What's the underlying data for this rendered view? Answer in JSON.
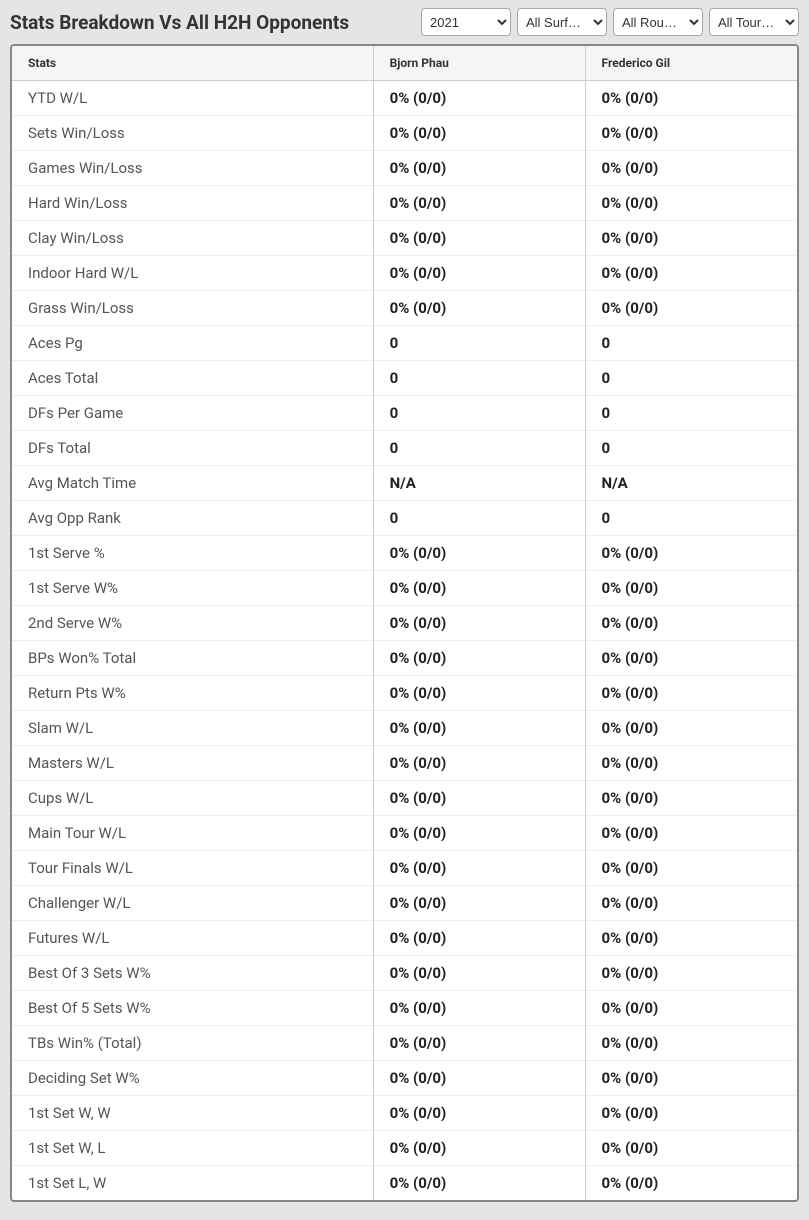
{
  "header": {
    "title": "Stats Breakdown Vs All H2H Opponents",
    "filters": {
      "year": "2021",
      "surface": "All Surf…",
      "round": "All Rou…",
      "tour": "All Tour…"
    }
  },
  "table": {
    "columns": [
      "Stats",
      "Bjorn Phau",
      "Frederico Gil"
    ],
    "header_bg": "#f5f5f5",
    "border_color": "#cccccc",
    "row_border": "#eeeeee",
    "rows": [
      {
        "stat": "YTD W/L",
        "p1": "0% (0/0)",
        "p2": "0% (0/0)"
      },
      {
        "stat": "Sets Win/Loss",
        "p1": "0% (0/0)",
        "p2": "0% (0/0)"
      },
      {
        "stat": "Games Win/Loss",
        "p1": "0% (0/0)",
        "p2": "0% (0/0)"
      },
      {
        "stat": "Hard Win/Loss",
        "p1": "0% (0/0)",
        "p2": "0% (0/0)"
      },
      {
        "stat": "Clay Win/Loss",
        "p1": "0% (0/0)",
        "p2": "0% (0/0)"
      },
      {
        "stat": "Indoor Hard W/L",
        "p1": "0% (0/0)",
        "p2": "0% (0/0)"
      },
      {
        "stat": "Grass Win/Loss",
        "p1": "0% (0/0)",
        "p2": "0% (0/0)"
      },
      {
        "stat": "Aces Pg",
        "p1": "0",
        "p2": "0"
      },
      {
        "stat": "Aces Total",
        "p1": "0",
        "p2": "0"
      },
      {
        "stat": "DFs Per Game",
        "p1": "0",
        "p2": "0"
      },
      {
        "stat": "DFs Total",
        "p1": "0",
        "p2": "0"
      },
      {
        "stat": "Avg Match Time",
        "p1": "N/A",
        "p2": "N/A"
      },
      {
        "stat": "Avg Opp Rank",
        "p1": "0",
        "p2": "0"
      },
      {
        "stat": "1st Serve %",
        "p1": "0% (0/0)",
        "p2": "0% (0/0)"
      },
      {
        "stat": "1st Serve W%",
        "p1": "0% (0/0)",
        "p2": "0% (0/0)"
      },
      {
        "stat": "2nd Serve W%",
        "p1": "0% (0/0)",
        "p2": "0% (0/0)"
      },
      {
        "stat": "BPs Won% Total",
        "p1": "0% (0/0)",
        "p2": "0% (0/0)"
      },
      {
        "stat": "Return Pts W%",
        "p1": "0% (0/0)",
        "p2": "0% (0/0)"
      },
      {
        "stat": "Slam W/L",
        "p1": "0% (0/0)",
        "p2": "0% (0/0)"
      },
      {
        "stat": "Masters W/L",
        "p1": "0% (0/0)",
        "p2": "0% (0/0)"
      },
      {
        "stat": "Cups W/L",
        "p1": "0% (0/0)",
        "p2": "0% (0/0)"
      },
      {
        "stat": "Main Tour W/L",
        "p1": "0% (0/0)",
        "p2": "0% (0/0)"
      },
      {
        "stat": "Tour Finals W/L",
        "p1": "0% (0/0)",
        "p2": "0% (0/0)"
      },
      {
        "stat": "Challenger W/L",
        "p1": "0% (0/0)",
        "p2": "0% (0/0)"
      },
      {
        "stat": "Futures W/L",
        "p1": "0% (0/0)",
        "p2": "0% (0/0)"
      },
      {
        "stat": "Best Of 3 Sets W%",
        "p1": "0% (0/0)",
        "p2": "0% (0/0)"
      },
      {
        "stat": "Best Of 5 Sets W%",
        "p1": "0% (0/0)",
        "p2": "0% (0/0)"
      },
      {
        "stat": "TBs Win% (Total)",
        "p1": "0% (0/0)",
        "p2": "0% (0/0)"
      },
      {
        "stat": "Deciding Set W%",
        "p1": "0% (0/0)",
        "p2": "0% (0/0)"
      },
      {
        "stat": "1st Set W, W",
        "p1": "0% (0/0)",
        "p2": "0% (0/0)"
      },
      {
        "stat": "1st Set W, L",
        "p1": "0% (0/0)",
        "p2": "0% (0/0)"
      },
      {
        "stat": "1st Set L, W",
        "p1": "0% (0/0)",
        "p2": "0% (0/0)"
      }
    ]
  }
}
